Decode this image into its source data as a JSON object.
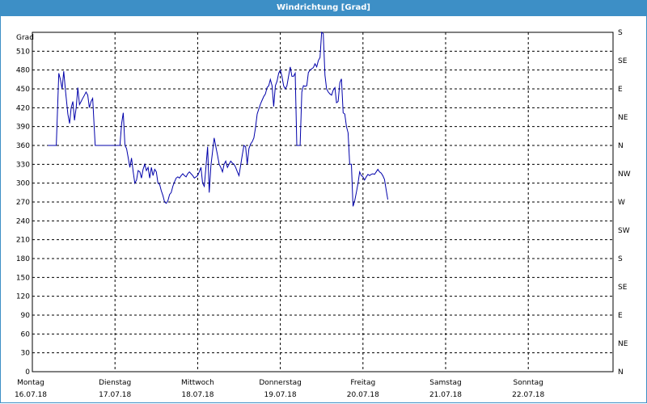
{
  "window": {
    "title": "Windrichtung [Grad]"
  },
  "chart_data": {
    "type": "line",
    "title": "Windrichtung [Grad]",
    "ylabel": "Grad",
    "ylim": [
      0,
      540
    ],
    "y_ticks": [
      0,
      30,
      60,
      90,
      120,
      150,
      180,
      210,
      240,
      270,
      300,
      330,
      360,
      390,
      420,
      450,
      480,
      510
    ],
    "y2_ticks": [
      {
        "value": 0,
        "label": "N"
      },
      {
        "value": 45,
        "label": "NE"
      },
      {
        "value": 90,
        "label": "E"
      },
      {
        "value": 135,
        "label": "SE"
      },
      {
        "value": 180,
        "label": "S"
      },
      {
        "value": 225,
        "label": "SW"
      },
      {
        "value": 270,
        "label": "W"
      },
      {
        "value": 315,
        "label": "NW"
      },
      {
        "value": 360,
        "label": "N"
      },
      {
        "value": 405,
        "label": "NE"
      },
      {
        "value": 450,
        "label": "E"
      },
      {
        "value": 495,
        "label": "SE"
      },
      {
        "value": 540,
        "label": "S"
      }
    ],
    "x_ticks": [
      {
        "day": 0,
        "name": "Montag",
        "date": "16.07.18"
      },
      {
        "day": 1,
        "name": "Dienstag",
        "date": "17.07.18"
      },
      {
        "day": 2,
        "name": "Mittwoch",
        "date": "18.07.18"
      },
      {
        "day": 3,
        "name": "Donnerstag",
        "date": "19.07.18"
      },
      {
        "day": 4,
        "name": "Freitag",
        "date": "20.07.18"
      },
      {
        "day": 5,
        "name": "Samstag",
        "date": "21.07.18"
      },
      {
        "day": 6,
        "name": "Sonntag",
        "date": "22.07.18"
      }
    ],
    "xlim": [
      0,
      7
    ],
    "grid": true,
    "line_color": "#0000aa",
    "series": [
      {
        "points": [
          [
            0.19,
            360
          ],
          [
            0.29,
            360
          ],
          [
            0.32,
            475
          ],
          [
            0.34,
            465
          ],
          [
            0.36,
            450
          ],
          [
            0.38,
            478
          ],
          [
            0.4,
            448
          ],
          [
            0.43,
            410
          ],
          [
            0.45,
            395
          ],
          [
            0.47,
            420
          ],
          [
            0.49,
            430
          ],
          [
            0.51,
            400
          ],
          [
            0.53,
            420
          ],
          [
            0.55,
            452
          ],
          [
            0.57,
            425
          ],
          [
            0.59,
            430
          ],
          [
            0.61,
            435
          ],
          [
            0.63,
            440
          ],
          [
            0.65,
            445
          ],
          [
            0.67,
            440
          ],
          [
            0.69,
            420
          ],
          [
            0.71,
            430
          ],
          [
            0.73,
            435
          ],
          [
            0.76,
            360
          ],
          [
            1.0,
            360
          ],
          [
            1.06,
            360
          ],
          [
            1.08,
            395
          ],
          [
            1.1,
            412
          ],
          [
            1.12,
            360
          ],
          [
            1.14,
            355
          ],
          [
            1.16,
            340
          ],
          [
            1.18,
            325
          ],
          [
            1.2,
            340
          ],
          [
            1.22,
            318
          ],
          [
            1.24,
            300
          ],
          [
            1.26,
            305
          ],
          [
            1.28,
            320
          ],
          [
            1.3,
            318
          ],
          [
            1.32,
            308
          ],
          [
            1.34,
            322
          ],
          [
            1.36,
            330
          ],
          [
            1.38,
            320
          ],
          [
            1.4,
            325
          ],
          [
            1.42,
            308
          ],
          [
            1.44,
            325
          ],
          [
            1.46,
            312
          ],
          [
            1.48,
            322
          ],
          [
            1.5,
            318
          ],
          [
            1.52,
            300
          ],
          [
            1.54,
            298
          ],
          [
            1.56,
            288
          ],
          [
            1.58,
            280
          ],
          [
            1.6,
            270
          ],
          [
            1.62,
            268
          ],
          [
            1.64,
            272
          ],
          [
            1.66,
            282
          ],
          [
            1.68,
            285
          ],
          [
            1.7,
            295
          ],
          [
            1.72,
            302
          ],
          [
            1.74,
            308
          ],
          [
            1.76,
            310
          ],
          [
            1.78,
            308
          ],
          [
            1.8,
            312
          ],
          [
            1.82,
            315
          ],
          [
            1.84,
            312
          ],
          [
            1.86,
            310
          ],
          [
            1.88,
            315
          ],
          [
            1.9,
            318
          ],
          [
            1.92,
            315
          ],
          [
            1.94,
            312
          ],
          [
            1.96,
            308
          ],
          [
            1.98,
            310
          ],
          [
            2.0,
            312
          ],
          [
            2.02,
            318
          ],
          [
            2.04,
            325
          ],
          [
            2.06,
            300
          ],
          [
            2.08,
            295
          ],
          [
            2.1,
            325
          ],
          [
            2.12,
            358
          ],
          [
            2.14,
            285
          ],
          [
            2.16,
            328
          ],
          [
            2.18,
            350
          ],
          [
            2.2,
            372
          ],
          [
            2.22,
            358
          ],
          [
            2.24,
            345
          ],
          [
            2.26,
            330
          ],
          [
            2.28,
            325
          ],
          [
            2.3,
            318
          ],
          [
            2.32,
            330
          ],
          [
            2.34,
            335
          ],
          [
            2.36,
            325
          ],
          [
            2.38,
            330
          ],
          [
            2.4,
            335
          ],
          [
            2.42,
            332
          ],
          [
            2.44,
            330
          ],
          [
            2.46,
            325
          ],
          [
            2.48,
            318
          ],
          [
            2.5,
            312
          ],
          [
            2.52,
            328
          ],
          [
            2.54,
            345
          ],
          [
            2.56,
            360
          ],
          [
            2.58,
            358
          ],
          [
            2.6,
            330
          ],
          [
            2.62,
            355
          ],
          [
            2.64,
            362
          ],
          [
            2.66,
            366
          ],
          [
            2.68,
            372
          ],
          [
            2.7,
            388
          ],
          [
            2.72,
            410
          ],
          [
            2.74,
            418
          ],
          [
            2.76,
            426
          ],
          [
            2.78,
            432
          ],
          [
            2.8,
            438
          ],
          [
            2.82,
            442
          ],
          [
            2.84,
            452
          ],
          [
            2.86,
            455
          ],
          [
            2.88,
            465
          ],
          [
            2.9,
            455
          ],
          [
            2.92,
            422
          ],
          [
            2.94,
            455
          ],
          [
            2.96,
            462
          ],
          [
            2.98,
            475
          ],
          [
            3.0,
            480
          ],
          [
            3.02,
            470
          ],
          [
            3.04,
            455
          ],
          [
            3.06,
            450
          ],
          [
            3.08,
            455
          ],
          [
            3.1,
            470
          ],
          [
            3.12,
            485
          ],
          [
            3.14,
            470
          ],
          [
            3.16,
            470
          ],
          [
            3.18,
            475
          ],
          [
            3.2,
            360
          ],
          [
            3.22,
            360
          ],
          [
            3.24,
            360
          ],
          [
            3.26,
            445
          ],
          [
            3.28,
            455
          ],
          [
            3.3,
            454
          ],
          [
            3.32,
            455
          ],
          [
            3.34,
            476
          ],
          [
            3.36,
            480
          ],
          [
            3.38,
            482
          ],
          [
            3.4,
            484
          ],
          [
            3.42,
            490
          ],
          [
            3.44,
            485
          ],
          [
            3.46,
            495
          ],
          [
            3.48,
            500
          ],
          [
            3.5,
            540
          ],
          [
            3.52,
            538
          ],
          [
            3.54,
            472
          ],
          [
            3.56,
            450
          ],
          [
            3.58,
            445
          ],
          [
            3.6,
            442
          ],
          [
            3.62,
            440
          ],
          [
            3.64,
            448
          ],
          [
            3.66,
            452
          ],
          [
            3.68,
            428
          ],
          [
            3.7,
            430
          ],
          [
            3.72,
            460
          ],
          [
            3.74,
            466
          ],
          [
            3.76,
            412
          ],
          [
            3.78,
            410
          ],
          [
            3.8,
            390
          ],
          [
            3.82,
            380
          ],
          [
            3.84,
            330
          ],
          [
            3.86,
            330
          ],
          [
            3.88,
            263
          ],
          [
            3.9,
            272
          ],
          [
            3.92,
            285
          ],
          [
            3.94,
            300
          ],
          [
            3.96,
            318
          ],
          [
            3.98,
            312
          ],
          [
            4.0,
            310
          ],
          [
            4.02,
            305
          ],
          [
            4.04,
            310
          ],
          [
            4.06,
            314
          ],
          [
            4.08,
            312
          ],
          [
            4.1,
            314
          ],
          [
            4.12,
            315
          ],
          [
            4.14,
            314
          ],
          [
            4.16,
            318
          ],
          [
            4.18,
            322
          ],
          [
            4.2,
            318
          ],
          [
            4.22,
            316
          ],
          [
            4.24,
            312
          ],
          [
            4.26,
            306
          ],
          [
            4.28,
            290
          ],
          [
            4.3,
            274
          ]
        ]
      }
    ]
  }
}
